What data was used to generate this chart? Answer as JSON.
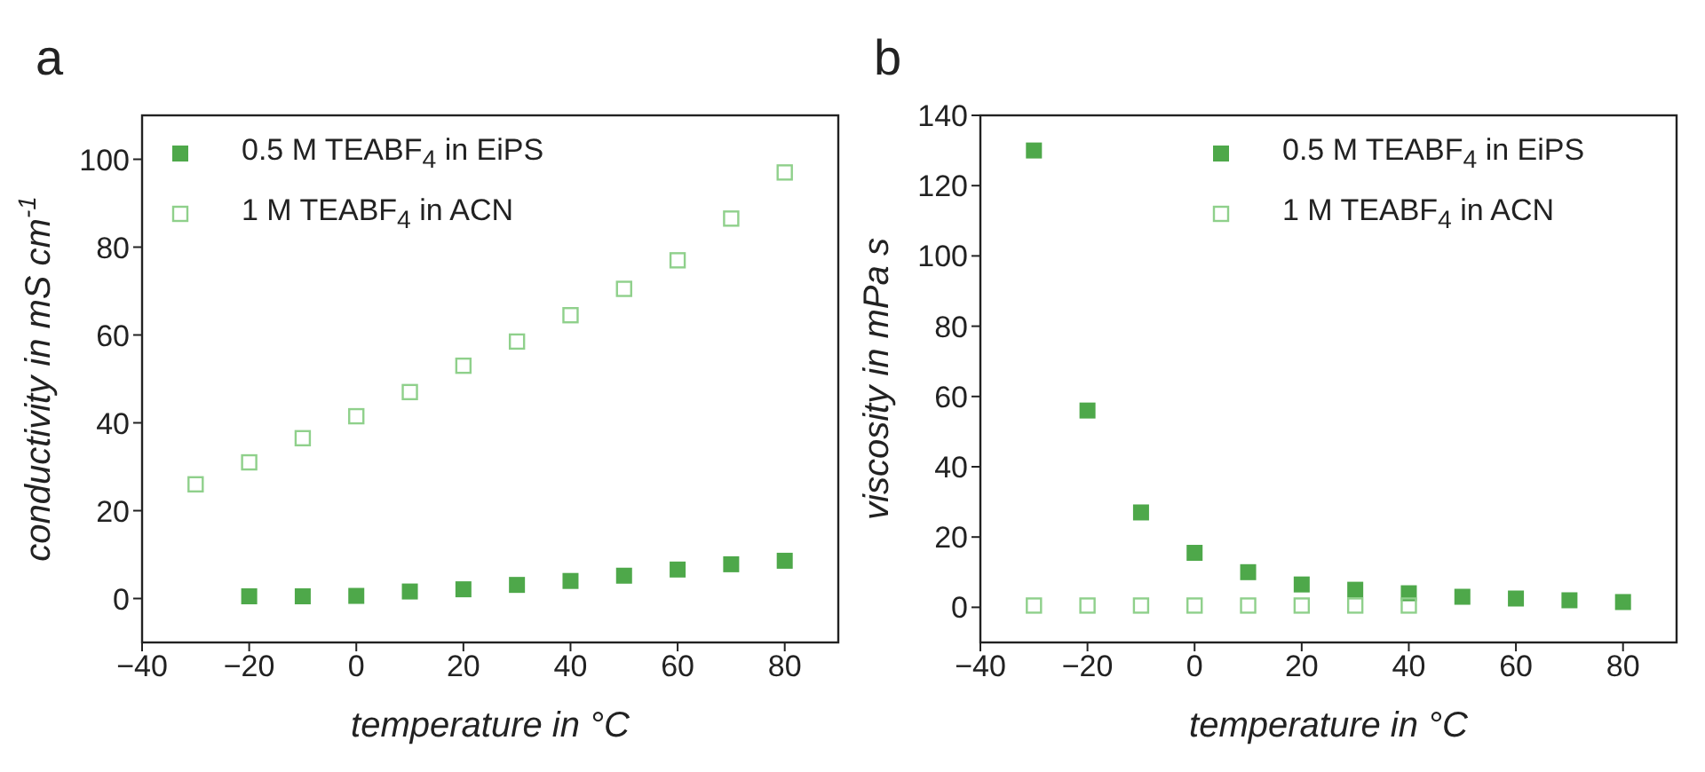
{
  "chart_data": [
    {
      "type": "scatter",
      "title": "a",
      "xlabel": "temperature in °C",
      "ylabel": "conductivity in mS cm$^{-1}$",
      "x": [
        -30,
        -20,
        -10,
        0,
        10,
        20,
        30,
        40,
        50,
        60,
        70,
        80
      ],
      "series": [
        {
          "name": "0.5 M TEABF$_{4}$ in EiPS",
          "color": "#4ea84a",
          "values": [
            null,
            0.5,
            0.5,
            0.6,
            1.6,
            2.1,
            3.1,
            4,
            5.2,
            6.6,
            7.8,
            8.6
          ]
        },
        {
          "name": "1 M TEABF$_{4}$ in ACN",
          "color": "#8fd08b",
          "values": [
            26,
            31,
            36.5,
            41.5,
            47,
            53,
            58.5,
            64.5,
            70.5,
            77,
            86.5,
            97
          ]
        }
      ],
      "xlim": [
        -40,
        90
      ],
      "xticks": [
        -40,
        -20,
        0,
        20,
        40,
        60,
        80
      ],
      "ylim": [
        -10,
        110
      ],
      "yticks": [
        0,
        20,
        40,
        60,
        80,
        100
      ],
      "legend": "top left",
      "marker": "square",
      "grid": false
    },
    {
      "type": "scatter",
      "title": "b",
      "xlabel": "temperature in °C",
      "ylabel": "viscosity in mPa s",
      "x": [
        -30,
        -20,
        -10,
        0,
        10,
        20,
        30,
        40,
        50,
        60,
        70,
        80
      ],
      "series": [
        {
          "name": "0.5 M TEABF$_{4}$ in EiPS",
          "color": "#4ea84a",
          "values": [
            130,
            56,
            27,
            15.5,
            10,
            6.5,
            5,
            4,
            3,
            2.5,
            2,
            1.5
          ]
        },
        {
          "name": "1 M TEABF$_{4}$ in ACN",
          "color": "#8fd08b",
          "values": [
            0.5,
            0.5,
            0.5,
            0.5,
            0.5,
            0.5,
            0.5,
            0.5,
            null,
            null,
            null,
            null
          ]
        }
      ],
      "xlim": [
        -40,
        90
      ],
      "xticks": [
        -40,
        -20,
        0,
        20,
        40,
        60,
        80
      ],
      "ylim": [
        -10,
        140
      ],
      "yticks": [
        0,
        20,
        40,
        60,
        80,
        100,
        120,
        140
      ],
      "legend": "top right",
      "marker": "square",
      "grid": false
    }
  ]
}
